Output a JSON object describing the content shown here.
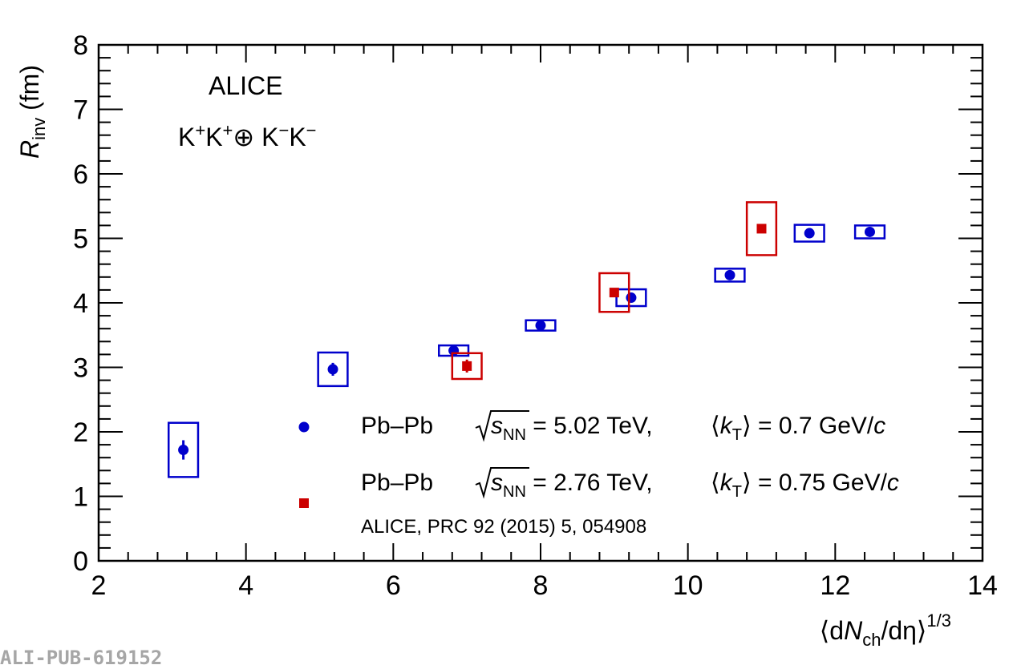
{
  "chart_data": {
    "type": "scatter",
    "xlabel": {
      "open": "⟨d",
      "var": "N",
      "sub": "ch",
      "close": "/dη⟩",
      "sup": "1/3"
    },
    "ylabel": {
      "var": "R",
      "sub": "inv",
      "unit": " (fm)"
    },
    "xlim": [
      2,
      14
    ],
    "ylim": [
      0,
      8
    ],
    "x_ticks": [
      "2",
      "4",
      "6",
      "8",
      "10",
      "12",
      "14"
    ],
    "y_ticks": [
      "0",
      "1",
      "2",
      "3",
      "4",
      "5",
      "6",
      "7",
      "8"
    ],
    "annotations": {
      "experiment": "ALICE",
      "system": {
        "a": "K",
        "s1": "+",
        "b": "K",
        "s2": "+",
        "op": "⊕ K",
        "s3": "−",
        "c": "K",
        "s4": "−"
      }
    },
    "series": [
      {
        "name": "Pb–Pb 5.02 TeV",
        "label": {
          "system": "Pb–Pb",
          "s": "s",
          "nn": "NN",
          "energy": " = 5.02 TeV,",
          "kopen": "⟨",
          "k": "k",
          "ksub": "T",
          "kval": "⟩ = 0.7 GeV/",
          "c": "c"
        },
        "color": "#0000cc",
        "marker": "circle",
        "points": [
          {
            "x": 3.15,
            "y": 1.72,
            "stat": 0.15,
            "sys_dx": 0.2,
            "sys": 0.42
          },
          {
            "x": 5.18,
            "y": 2.97,
            "stat": 0.1,
            "sys_dx": 0.2,
            "sys": 0.26
          },
          {
            "x": 6.82,
            "y": 3.26,
            "stat": 0.03,
            "sys_dx": 0.2,
            "sys": 0.08
          },
          {
            "x": 8.0,
            "y": 3.65,
            "stat": 0.03,
            "sys_dx": 0.2,
            "sys": 0.08
          },
          {
            "x": 9.23,
            "y": 4.08,
            "stat": 0.03,
            "sys_dx": 0.2,
            "sys": 0.13
          },
          {
            "x": 10.57,
            "y": 4.43,
            "stat": 0.03,
            "sys_dx": 0.2,
            "sys": 0.1
          },
          {
            "x": 11.65,
            "y": 5.08,
            "stat": 0.03,
            "sys_dx": 0.2,
            "sys": 0.13
          },
          {
            "x": 12.47,
            "y": 5.1,
            "stat": 0.03,
            "sys_dx": 0.2,
            "sys": 0.1
          }
        ]
      },
      {
        "name": "Pb–Pb 2.76 TeV",
        "label": {
          "system": "Pb–Pb",
          "s": "s",
          "nn": "NN",
          "energy": " = 2.76 TeV,",
          "kopen": "⟨",
          "k": "k",
          "ksub": "T",
          "kval": "⟩ = 0.75 GeV/",
          "c": "c"
        },
        "reference": "ALICE, PRC 92 (2015) 5, 054908",
        "color": "#cc0000",
        "marker": "square",
        "points": [
          {
            "x": 7.0,
            "y": 3.02,
            "stat": 0.1,
            "sys_dx": 0.2,
            "sys": 0.2
          },
          {
            "x": 9.0,
            "y": 4.16,
            "stat": 0.07,
            "sys_dx": 0.2,
            "sys": 0.3
          },
          {
            "x": 11.0,
            "y": 5.15,
            "stat": 0.06,
            "sys_dx": 0.2,
            "sys": 0.41
          }
        ]
      }
    ],
    "legend": "inside-bottom-right"
  },
  "footer": {
    "id": "ALI-PUB-619152"
  }
}
